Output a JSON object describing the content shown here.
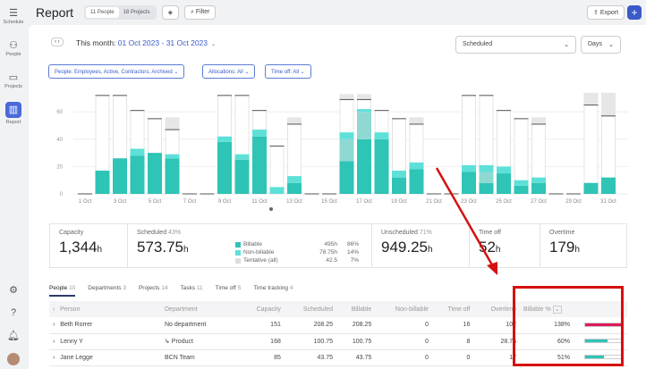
{
  "sidebar": {
    "items": [
      {
        "label": "Schedule",
        "icon": "schedule-icon"
      },
      {
        "label": "People",
        "icon": "people-icon"
      },
      {
        "label": "Projects",
        "icon": "folder-icon"
      },
      {
        "label": "Report",
        "icon": "chart-icon",
        "active": true
      }
    ]
  },
  "header": {
    "title": "Report",
    "people_toggle": "11 People",
    "projects_toggle": "18 Projects",
    "filter": "Filter",
    "export": "Export",
    "add": "+"
  },
  "range": {
    "label": "This month:",
    "start": "01 Oct 2023",
    "sep": "-",
    "end": "31 Oct 2023"
  },
  "filters": [
    "People: Employees, Active, Contractors, Archived",
    "Allocations: All",
    "Time off: All"
  ],
  "selects": {
    "mode": "Scheduled",
    "unit": "Days"
  },
  "chart_data": {
    "type": "bar",
    "stacked": true,
    "yticks": [
      0,
      20,
      40,
      60
    ],
    "ylim": [
      0,
      75
    ],
    "categories": [
      "1 Oct",
      "2 Oct",
      "3 Oct",
      "4 Oct",
      "5 Oct",
      "6 Oct",
      "7 Oct",
      "8 Oct",
      "9 Oct",
      "10 Oct",
      "11 Oct",
      "12 Oct",
      "13 Oct",
      "14 Oct",
      "15 Oct",
      "16 Oct",
      "17 Oct",
      "18 Oct",
      "19 Oct",
      "20 Oct",
      "21 Oct",
      "22 Oct",
      "23 Oct",
      "24 Oct",
      "25 Oct",
      "26 Oct",
      "27 Oct",
      "28 Oct",
      "29 Oct",
      "30 Oct",
      "31 Oct"
    ],
    "xtick_labels": [
      "1 Oct",
      "3 Oct",
      "5 Oct",
      "7 Oct",
      "9 Oct",
      "11 Oct",
      "13 Oct",
      "15 Oct",
      "17 Oct",
      "19 Oct",
      "21 Oct",
      "23 Oct",
      "25 Oct",
      "27 Oct",
      "29 Oct",
      "31 Oct"
    ],
    "series": [
      {
        "name": "Billable",
        "color": "#2ec4b6",
        "values": [
          0,
          17,
          26,
          28,
          30,
          26,
          0,
          0,
          38,
          25,
          42,
          0,
          8,
          0,
          0,
          24,
          40,
          40,
          12,
          18,
          0,
          0,
          16,
          8,
          15,
          6,
          8,
          0,
          0,
          8,
          12
        ]
      },
      {
        "name": "Tentative billable",
        "color": "#8fd9d2",
        "values": [
          0,
          0,
          0,
          0,
          0,
          0,
          0,
          0,
          0,
          0,
          0,
          0,
          0,
          0,
          0,
          16,
          20,
          0,
          0,
          0,
          0,
          0,
          0,
          8,
          0,
          0,
          0,
          0,
          0,
          0,
          0
        ]
      },
      {
        "name": "Non-billable",
        "color": "#5ee0d8",
        "values": [
          0,
          0,
          0,
          5,
          0,
          3,
          0,
          0,
          4,
          4,
          5,
          5,
          5,
          0,
          0,
          5,
          2,
          5,
          5,
          5,
          0,
          0,
          5,
          5,
          5,
          4,
          4,
          0,
          0,
          0,
          0
        ]
      }
    ],
    "capacity": [
      0,
      72,
      72,
      61,
      55,
      47,
      0,
      0,
      72,
      72,
      61,
      35,
      51,
      0,
      0,
      69,
      69,
      61,
      55,
      51,
      0,
      0,
      72,
      72,
      61,
      55,
      51,
      0,
      0,
      65,
      57
    ],
    "tentative_top": [
      0,
      0,
      0,
      0,
      0,
      56,
      0,
      0,
      0,
      0,
      0,
      0,
      56,
      0,
      0,
      73,
      73,
      0,
      0,
      56,
      0,
      0,
      0,
      0,
      0,
      0,
      56,
      0,
      0,
      74,
      74
    ]
  },
  "stats": {
    "capacity": {
      "label": "Capacity",
      "value": "1,344",
      "unit": "h"
    },
    "scheduled": {
      "label": "Scheduled",
      "pct": "43%",
      "value": "573.75",
      "unit": "h",
      "legend": [
        {
          "name": "Billable",
          "hours": "495h",
          "pct": "86%",
          "color": "#2ec4b6"
        },
        {
          "name": "Non-billable",
          "hours": "78.75h",
          "pct": "14%",
          "color": "#5ee0d8"
        },
        {
          "name": "Tentative (all)",
          "hours": "42.5",
          "pct": "7%",
          "color": "#ddd"
        }
      ]
    },
    "unscheduled": {
      "label": "Unscheduled",
      "pct": "71%",
      "value": "949.25",
      "unit": "h"
    },
    "timeoff": {
      "label": "Time off",
      "value": "52",
      "unit": "h"
    },
    "overtime": {
      "label": "Overtime",
      "value": "179",
      "unit": "h"
    }
  },
  "tabs": [
    {
      "label": "People",
      "count": "10"
    },
    {
      "label": "Departments",
      "count": "3"
    },
    {
      "label": "Projects",
      "count": "14"
    },
    {
      "label": "Tasks",
      "count": "11"
    },
    {
      "label": "Time off",
      "count": "5"
    },
    {
      "label": "Time tracking",
      "count": "4"
    }
  ],
  "table": {
    "columns": [
      "Person",
      "Department",
      "Capacity",
      "Scheduled",
      "Billable",
      "Non-billable",
      "Time off",
      "Overtime",
      "Billable %"
    ],
    "rows": [
      {
        "person": "Beth Rorrer",
        "department": "No department",
        "capacity": "151",
        "scheduled": "208.25",
        "billable": "208.25",
        "nonbillable": "0",
        "timeoff": "16",
        "overtime": "102",
        "billable_pct": "138%",
        "fill": 1.0,
        "color": "#e0195a"
      },
      {
        "person": "Lenny Y",
        "department": "↳ Product",
        "capacity": "168",
        "scheduled": "100.75",
        "billable": "100.75",
        "nonbillable": "0",
        "timeoff": "8",
        "overtime": "28.75",
        "billable_pct": "60%",
        "fill": 0.6,
        "color": "#2ec4b6"
      },
      {
        "person": "Jane Legge",
        "department": "BCN Team",
        "capacity": "85",
        "scheduled": "43.75",
        "billable": "43.75",
        "nonbillable": "0",
        "timeoff": "0",
        "overtime": "17",
        "billable_pct": "51%",
        "fill": 0.51,
        "color": "#2ec4b6"
      }
    ]
  }
}
